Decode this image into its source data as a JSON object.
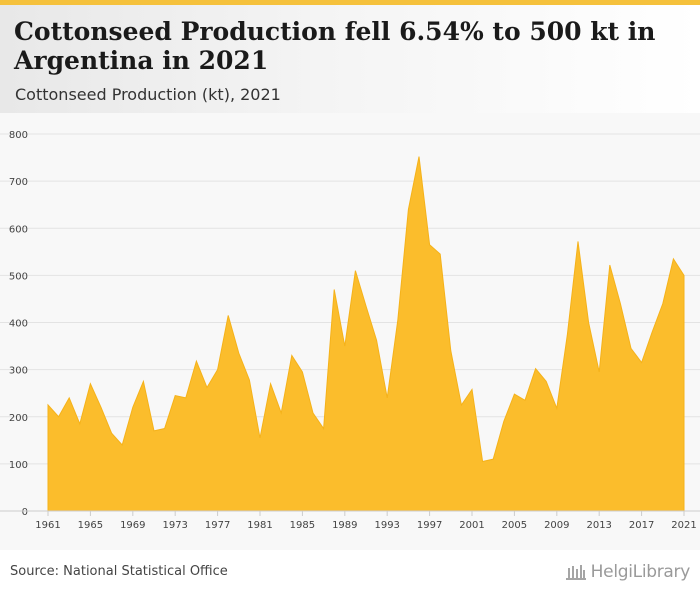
{
  "header": {
    "title": "Cottonseed Production fell 6.54% to 500 kt in Argentina in 2021",
    "subtitle": "Cottonseed Production (kt), 2021"
  },
  "footer": {
    "source": "Source: National Statistical Office",
    "logo_text": "HelgiLibrary"
  },
  "colors": {
    "accent": "#f5c13c",
    "area_fill": "#fbbd2c",
    "area_stroke": "#f5b21a"
  },
  "chart_data": {
    "type": "area",
    "title": "Cottonseed Production fell 6.54% to 500 kt in Argentina in 2021",
    "subtitle": "Cottonseed Production (kt), 2021",
    "ylim": [
      0,
      800
    ],
    "yticks": [
      0,
      100,
      200,
      300,
      400,
      500,
      600,
      700,
      800
    ],
    "xlim": [
      1961,
      2021
    ],
    "xticks": [
      1961,
      1965,
      1969,
      1973,
      1977,
      1981,
      1985,
      1989,
      1993,
      1997,
      2001,
      2005,
      2009,
      2013,
      2017,
      2021
    ],
    "grid": true,
    "series": [
      {
        "x": [
          1961,
          1962,
          1963,
          1964,
          1965,
          1966,
          1967,
          1968,
          1969,
          1970,
          1971,
          1972,
          1973,
          1974,
          1975,
          1976,
          1977,
          1978,
          1979,
          1980,
          1981,
          1982,
          1983,
          1984,
          1985,
          1986,
          1987,
          1988,
          1989,
          1990,
          1991,
          1992,
          1993,
          1994,
          1995,
          1996,
          1997,
          1998,
          1999,
          2000,
          2001,
          2002,
          2003,
          2004,
          2005,
          2006,
          2007,
          2008,
          2009,
          2010,
          2011,
          2012,
          2013,
          2014,
          2015,
          2016,
          2017,
          2018,
          2019,
          2020,
          2021
        ],
        "values": [
          225,
          200,
          240,
          185,
          270,
          220,
          165,
          140,
          220,
          275,
          170,
          175,
          245,
          240,
          318,
          262,
          300,
          415,
          335,
          278,
          155,
          270,
          208,
          330,
          295,
          208,
          175,
          470,
          350,
          510,
          435,
          362,
          240,
          405,
          640,
          752,
          565,
          545,
          340,
          225,
          258,
          105,
          110,
          190,
          248,
          235,
          302,
          275,
          218,
          375,
          572,
          400,
          295,
          522,
          440,
          345,
          315,
          380,
          440,
          535,
          500
        ]
      }
    ]
  }
}
